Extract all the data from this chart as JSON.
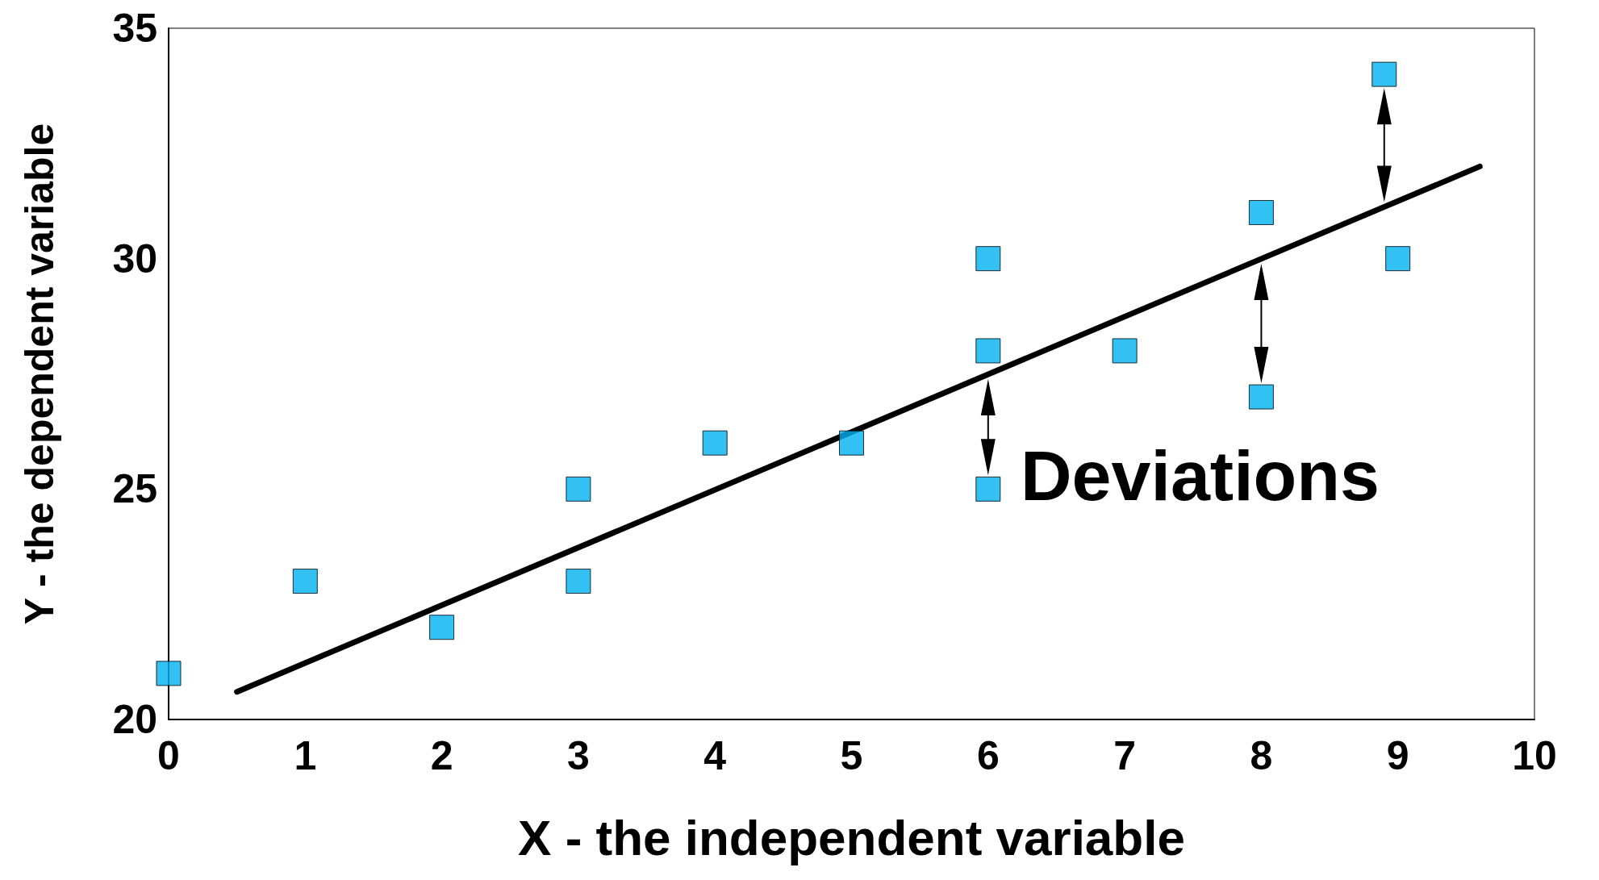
{
  "chart_data": {
    "type": "scatter",
    "xlabel": "X - the independent variable",
    "ylabel": "Y - the dependent variable",
    "annotations": [
      "Deviations"
    ],
    "xlim": [
      0,
      10
    ],
    "xticks": [
      0,
      1,
      2,
      3,
      4,
      5,
      6,
      7,
      8,
      9,
      10
    ],
    "ylim": [
      20,
      35
    ],
    "yticks": [
      20,
      25,
      30,
      35
    ],
    "grid": false,
    "marker": "square",
    "series": [
      {
        "color": "#00b0f0",
        "x": [
          0,
          1,
          2,
          3,
          3,
          4,
          5,
          6,
          6,
          6,
          7,
          8,
          8,
          8.9,
          9
        ],
        "values": [
          21,
          23,
          22,
          25,
          23,
          26,
          26,
          30,
          28,
          25,
          28,
          31,
          27,
          34,
          30
        ]
      },
      {
        "type": "line",
        "color": "#000000",
        "marker": "none",
        "line_style": "solid",
        "x": [
          0.5,
          9.6
        ],
        "values": [
          20.6,
          32.0
        ]
      }
    ]
  }
}
